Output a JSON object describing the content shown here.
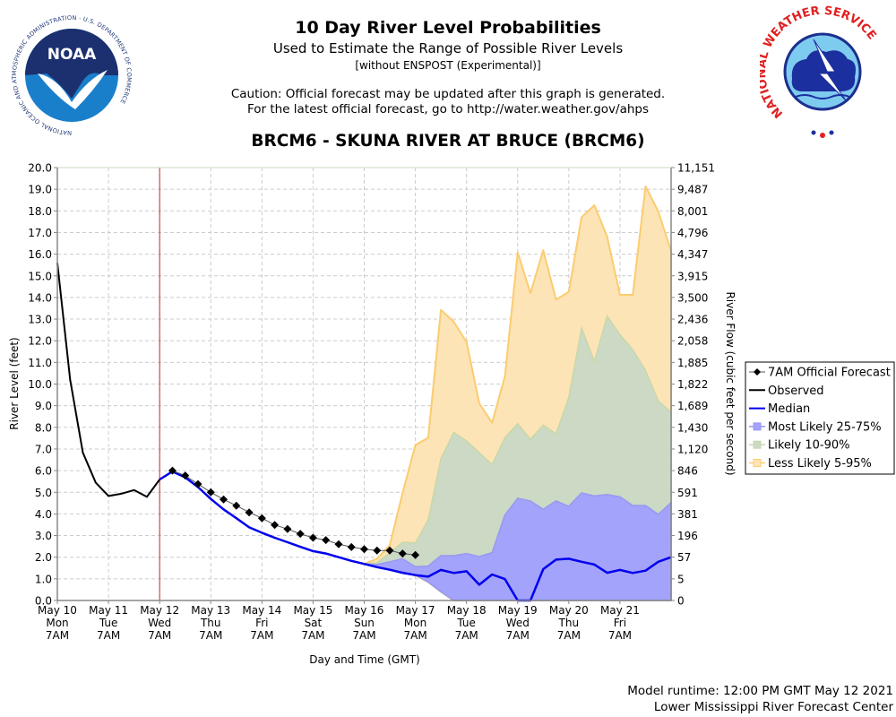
{
  "header": {
    "title": "10 Day River Level Probabilities",
    "subtitle": "Used to Estimate the Range of Possible River Levels",
    "subtitle2": "[without ENSPOST (Experimental)]",
    "caution_line1": "Caution: Official forecast may be updated after this graph is generated.",
    "caution_line2": "For the latest official forecast, go to http://water.weather.gov/ahps",
    "station": "BRCM6 - SKUNA RIVER AT BRUCE (BRCM6)"
  },
  "logos": {
    "left": {
      "name": "NOAA",
      "ring_text": "NATIONAL OCEANIC AND ATMOSPHERIC ADMINISTRATION · U.S. DEPARTMENT OF COMMERCE"
    },
    "right": {
      "name": "NATIONAL WEATHER SERVICE"
    }
  },
  "footer": {
    "runtime": "Model runtime: 12:00 PM GMT May 12 2021",
    "center": "Lower Mississippi River Forecast Center"
  },
  "colors": {
    "observed": "#000000",
    "forecast": "#000000",
    "median": "#0000ee",
    "band_25_75": "#a3a3fb",
    "band_10_90": "#cbd9c5",
    "band_5_95": "#fde4b6",
    "band_5_95_edge": "#fbcc70",
    "band_10_90_edge": "#c9d8a8",
    "band_25_75_edge": "#9898f0",
    "current_time_line": "#dd2222"
  },
  "chart_data": {
    "type": "area",
    "title": "BRCM6 - SKUNA RIVER AT BRUCE (BRCM6)",
    "xlabel": "Day and Time (GMT)",
    "ylabel": "River Level (feet)",
    "y2label": "River Flow (cubic feet per second)",
    "x_unit": "6-hour steps from May 10 7AM",
    "xlim": [
      0,
      48
    ],
    "ylim": [
      0,
      20
    ],
    "grid": true,
    "legend_position": "right",
    "current_time_step": 8,
    "x_ticks": [
      {
        "step": 0,
        "date": "May 10",
        "day": "Mon",
        "time": "7AM"
      },
      {
        "step": 4,
        "date": "May 11",
        "day": "Tue",
        "time": "7AM"
      },
      {
        "step": 8,
        "date": "May 12",
        "day": "Wed",
        "time": "7AM"
      },
      {
        "step": 12,
        "date": "May 13",
        "day": "Thu",
        "time": "7AM"
      },
      {
        "step": 16,
        "date": "May 14",
        "day": "Fri",
        "time": "7AM"
      },
      {
        "step": 20,
        "date": "May 15",
        "day": "Sat",
        "time": "7AM"
      },
      {
        "step": 24,
        "date": "May 16",
        "day": "Sun",
        "time": "7AM"
      },
      {
        "step": 28,
        "date": "May 17",
        "day": "Mon",
        "time": "7AM"
      },
      {
        "step": 32,
        "date": "May 18",
        "day": "Tue",
        "time": "7AM"
      },
      {
        "step": 36,
        "date": "May 19",
        "day": "Wed",
        "time": "7AM"
      },
      {
        "step": 40,
        "date": "May 20",
        "day": "Thu",
        "time": "7AM"
      },
      {
        "step": 44,
        "date": "May 21",
        "day": "Fri",
        "time": "7AM"
      }
    ],
    "y_ticks": [
      "0.0",
      "1.0",
      "2.0",
      "3.0",
      "4.0",
      "5.0",
      "6.0",
      "7.0",
      "8.0",
      "9.0",
      "10.0",
      "11.0",
      "12.0",
      "13.0",
      "14.0",
      "15.0",
      "16.0",
      "17.0",
      "18.0",
      "19.0",
      "20.0"
    ],
    "y2_ticks": [
      "0",
      "5",
      "57",
      "196",
      "381",
      "591",
      "846",
      "1,120",
      "1,430",
      "1,689",
      "1,822",
      "1,885",
      "2,058",
      "2,436",
      "3,500",
      "3,915",
      "4,347",
      "4,796",
      "8,001",
      "9,487",
      "11,151"
    ],
    "legend": [
      {
        "key": "forecast",
        "label": "7AM Official Forecast"
      },
      {
        "key": "observed",
        "label": "Observed"
      },
      {
        "key": "median",
        "label": "Median"
      },
      {
        "key": "band_25_75",
        "label": "Most Likely 25-75%"
      },
      {
        "key": "band_10_90",
        "label": "Likely 10-90%"
      },
      {
        "key": "band_5_95",
        "label": "Less Likely 5-95%"
      }
    ],
    "series": [
      {
        "name": "Observed",
        "x_start": 0,
        "values": [
          15.6,
          10.2,
          6.83,
          5.45,
          4.83,
          4.93,
          5.1,
          4.79,
          5.59
        ]
      },
      {
        "name": "7AM Official Forecast",
        "x_start": 9,
        "values": [
          6.0,
          5.77,
          5.38,
          5.0,
          4.67,
          4.38,
          4.07,
          3.8,
          3.49,
          3.3,
          3.08,
          2.9,
          2.79,
          2.6,
          2.47,
          2.37,
          2.31,
          2.31,
          2.17,
          2.1
        ]
      },
      {
        "name": "Median",
        "x_start": 8,
        "values": [
          5.59,
          5.96,
          5.69,
          5.24,
          4.69,
          4.21,
          3.8,
          3.38,
          3.13,
          2.9,
          2.69,
          2.48,
          2.28,
          2.17,
          2.0,
          1.83,
          1.69,
          1.54,
          1.42,
          1.28,
          1.17,
          1.1,
          1.41,
          1.27,
          1.35,
          0.73,
          1.2,
          0.99,
          0.0,
          0.0,
          1.45,
          1.89,
          1.93,
          1.79,
          1.66,
          1.28,
          1.41,
          1.27,
          1.38,
          1.79,
          2.0
        ]
      }
    ],
    "bands": {
      "x_start": 24,
      "lower": [
        1.69,
        1.54,
        1.42,
        1.28,
        1.17,
        0.85,
        0.4,
        0.0,
        0.0,
        0.0,
        0.0,
        0.0,
        0.0,
        0.0,
        0.0,
        0.0,
        0.0,
        0.0,
        0.0,
        0.0,
        0.0,
        0.0,
        0.0,
        0.0,
        0.0
      ],
      "upper_25_75": [
        1.69,
        1.66,
        1.79,
        1.93,
        1.56,
        1.59,
        2.07,
        2.07,
        2.17,
        2.03,
        2.21,
        3.95,
        4.72,
        4.6,
        4.21,
        4.6,
        4.35,
        4.97,
        4.83,
        4.9,
        4.79,
        4.39,
        4.39,
        3.98,
        4.53
      ],
      "upper_10_90": [
        1.69,
        1.75,
        2.2,
        2.69,
        2.66,
        3.73,
        6.56,
        7.76,
        7.38,
        6.83,
        6.28,
        7.52,
        8.17,
        7.45,
        8.1,
        7.7,
        9.39,
        12.59,
        11.04,
        13.14,
        12.29,
        11.59,
        10.63,
        9.22,
        8.7
      ],
      "upper_5_95": [
        1.69,
        1.93,
        2.55,
        4.97,
        7.18,
        7.52,
        13.42,
        12.88,
        11.94,
        9.11,
        8.21,
        10.35,
        16.08,
        14.2,
        16.18,
        13.9,
        14.26,
        17.71,
        18.26,
        16.81,
        14.12,
        14.12,
        19.13,
        17.97,
        16.15
      ]
    }
  }
}
